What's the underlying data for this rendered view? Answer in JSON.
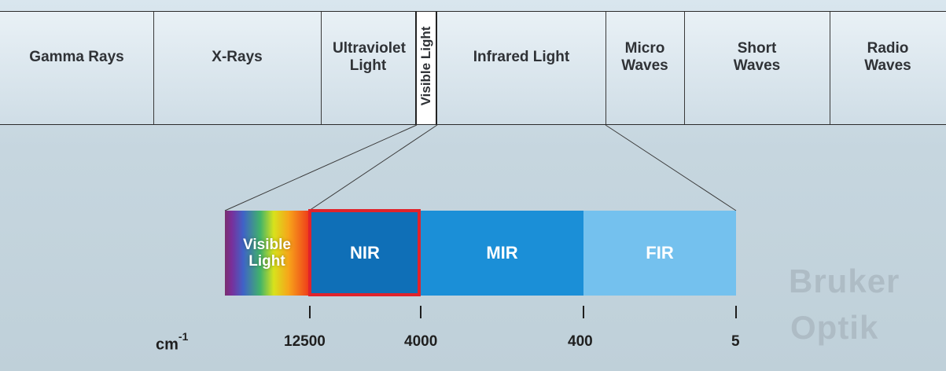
{
  "spectrum": {
    "bands": [
      {
        "label": "Gamma Rays"
      },
      {
        "label": "X-Rays"
      },
      {
        "label": "Ultraviolet Light"
      },
      {
        "label": "Visible Light"
      },
      {
        "label": "Infrared Light"
      },
      {
        "label": "Micro Waves"
      },
      {
        "label": "Short Waves"
      },
      {
        "label": "Radio Waves"
      }
    ]
  },
  "infrared_zoom": {
    "segments": [
      {
        "label": "Visible Light"
      },
      {
        "label": "NIR"
      },
      {
        "label": "MIR"
      },
      {
        "label": "FIR"
      }
    ],
    "highlighted": "NIR",
    "highlight_color": "#e0232b"
  },
  "axis": {
    "unit": "cm",
    "unit_exponent": "-1",
    "ticks": [
      "12500",
      "4000",
      "400",
      "5"
    ]
  },
  "logo": {
    "line1": "Bruker",
    "line2": "Optik"
  },
  "colors": {
    "nir": "#0f6fb7",
    "mir": "#1b8fd7",
    "fir": "#74c1ee"
  }
}
